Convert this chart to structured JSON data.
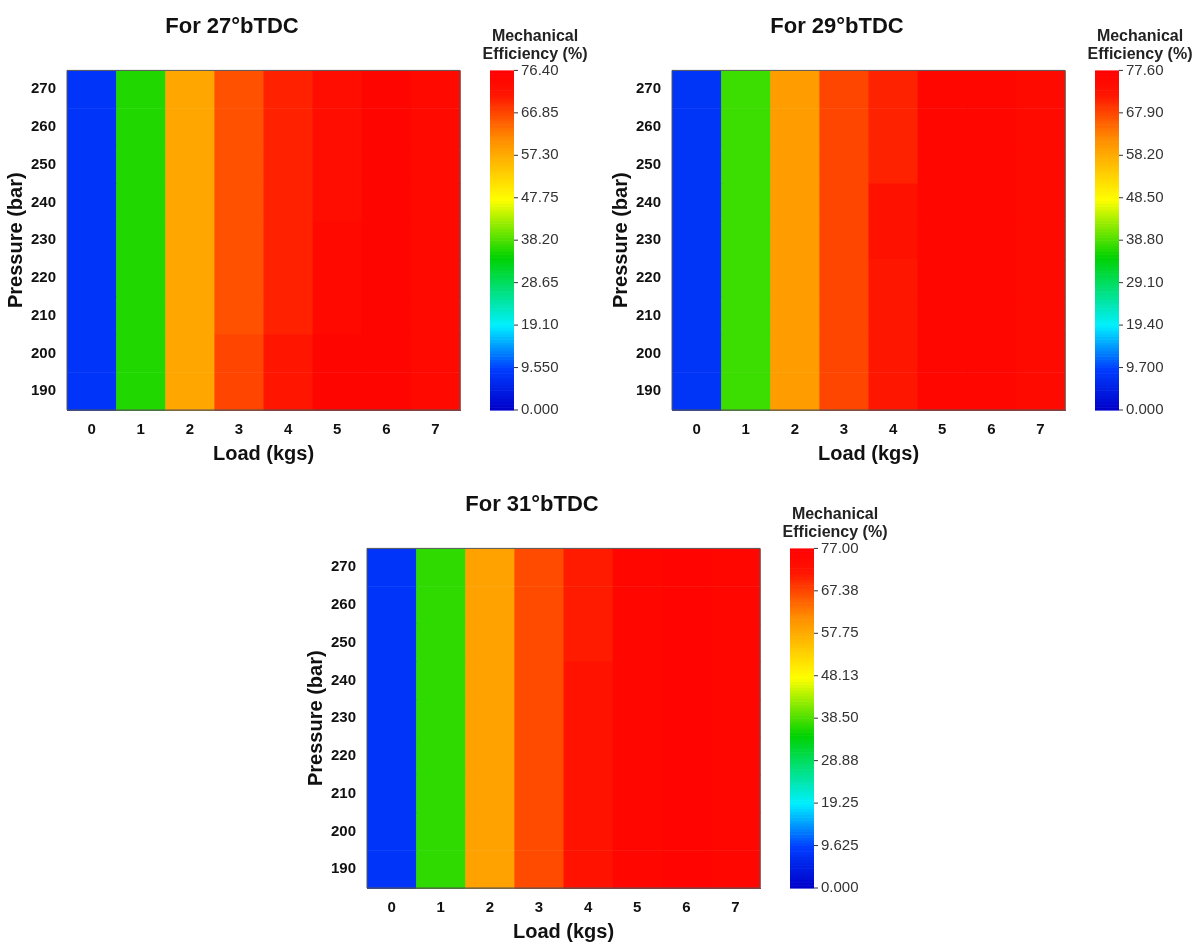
{
  "chart_data": [
    {
      "type": "heatmap",
      "title": "For 27°bTDC",
      "xlabel": "Load (kgs)",
      "ylabel": "Pressure (bar)",
      "clabel": "Mechanical Efficiency (%)",
      "categories": [
        "0",
        "1",
        "2",
        "3",
        "4",
        "5",
        "6",
        "7"
      ],
      "y_categories": [
        "270",
        "260",
        "250",
        "240",
        "230",
        "220",
        "210",
        "200",
        "190"
      ],
      "cells": [
        [
          8,
          36,
          58,
          66,
          70,
          73,
          75,
          74
        ],
        [
          8,
          36,
          58,
          66,
          70,
          73,
          75,
          74
        ],
        [
          8,
          36,
          58,
          66,
          70,
          73,
          75,
          74
        ],
        [
          8,
          36,
          58,
          66,
          70,
          73,
          75,
          74
        ],
        [
          8,
          36,
          58,
          66,
          70,
          74,
          75,
          74
        ],
        [
          8,
          36,
          58,
          66,
          70,
          74,
          75,
          74
        ],
        [
          8,
          36,
          58,
          66,
          70,
          74,
          75,
          74
        ],
        [
          8,
          36,
          58,
          67,
          71,
          75,
          75,
          74
        ],
        [
          8,
          36,
          58,
          67,
          71,
          75,
          75,
          74
        ]
      ],
      "clim": [
        0,
        76.4
      ],
      "cticks": [
        {
          "value": 0,
          "label": "0.000"
        },
        {
          "value": 9.55,
          "label": "9.550"
        },
        {
          "value": 19.1,
          "label": "19.10"
        },
        {
          "value": 28.65,
          "label": "28.65"
        },
        {
          "value": 38.2,
          "label": "38.20"
        },
        {
          "value": 47.75,
          "label": "47.75"
        },
        {
          "value": 57.3,
          "label": "57.30"
        },
        {
          "value": 66.85,
          "label": "66.85"
        },
        {
          "value": 76.4,
          "label": "76.40"
        }
      ],
      "grid": false
    },
    {
      "type": "heatmap",
      "title": "For 29°bTDC",
      "xlabel": "Load (kgs)",
      "ylabel": "Pressure (bar)",
      "clabel": "Mechanical Efficiency (%)",
      "categories": [
        "0",
        "1",
        "2",
        "3",
        "4",
        "5",
        "6",
        "7"
      ],
      "y_categories": [
        "270",
        "260",
        "250",
        "240",
        "230",
        "220",
        "210",
        "200",
        "190"
      ],
      "cells": [
        [
          8,
          38,
          60,
          68,
          71,
          76,
          76,
          75
        ],
        [
          8,
          38,
          60,
          68,
          71,
          76,
          76,
          75
        ],
        [
          8,
          38,
          60,
          68,
          71,
          76,
          76,
          75
        ],
        [
          8,
          38,
          60,
          68,
          73,
          76,
          76,
          75
        ],
        [
          8,
          38,
          60,
          68,
          73,
          76,
          76,
          75
        ],
        [
          8,
          38,
          60,
          68,
          72,
          76,
          76,
          75
        ],
        [
          8,
          38,
          60,
          68,
          72,
          76,
          76,
          75
        ],
        [
          8,
          38,
          60,
          68,
          72,
          76,
          76,
          75
        ],
        [
          8,
          38,
          60,
          68,
          72,
          76,
          76,
          75
        ]
      ],
      "clim": [
        0,
        77.6
      ],
      "cticks": [
        {
          "value": 0,
          "label": "0.000"
        },
        {
          "value": 9.7,
          "label": "9.700"
        },
        {
          "value": 19.4,
          "label": "19.40"
        },
        {
          "value": 29.1,
          "label": "29.10"
        },
        {
          "value": 38.8,
          "label": "38.80"
        },
        {
          "value": 48.5,
          "label": "48.50"
        },
        {
          "value": 58.2,
          "label": "58.20"
        },
        {
          "value": 67.9,
          "label": "67.90"
        },
        {
          "value": 77.6,
          "label": "77.60"
        }
      ],
      "grid": false
    },
    {
      "type": "heatmap",
      "title": "For 31°bTDC",
      "xlabel": "Load (kgs)",
      "ylabel": "Pressure (bar)",
      "clabel": "Mechanical Efficiency (%)",
      "categories": [
        "0",
        "1",
        "2",
        "3",
        "4",
        "5",
        "6",
        "7"
      ],
      "y_categories": [
        "270",
        "260",
        "250",
        "240",
        "230",
        "220",
        "210",
        "200",
        "190"
      ],
      "cells": [
        [
          8,
          37,
          59,
          67,
          71,
          75,
          76,
          75
        ],
        [
          8,
          37,
          59,
          67,
          71,
          75,
          76,
          75
        ],
        [
          8,
          37,
          59,
          67,
          71,
          75,
          76,
          75
        ],
        [
          8,
          37,
          59,
          67,
          72,
          75,
          76,
          75
        ],
        [
          8,
          37,
          59,
          67,
          72,
          75,
          76,
          75
        ],
        [
          8,
          37,
          59,
          67,
          72,
          75,
          76,
          75
        ],
        [
          8,
          37,
          59,
          67,
          72,
          75,
          76,
          75
        ],
        [
          8,
          37,
          59,
          67,
          72,
          75,
          76,
          75
        ],
        [
          8,
          37,
          59,
          67,
          72,
          75,
          76,
          75
        ]
      ],
      "clim": [
        0,
        77
      ],
      "cticks": [
        {
          "value": 0,
          "label": "0.000"
        },
        {
          "value": 9.625,
          "label": "9.625"
        },
        {
          "value": 19.25,
          "label": "19.25"
        },
        {
          "value": 28.88,
          "label": "28.88"
        },
        {
          "value": 38.5,
          "label": "38.50"
        },
        {
          "value": 48.13,
          "label": "48.13"
        },
        {
          "value": 57.75,
          "label": "57.75"
        },
        {
          "value": 67.38,
          "label": "67.38"
        },
        {
          "value": 77,
          "label": "77.00"
        }
      ],
      "grid": false
    }
  ]
}
